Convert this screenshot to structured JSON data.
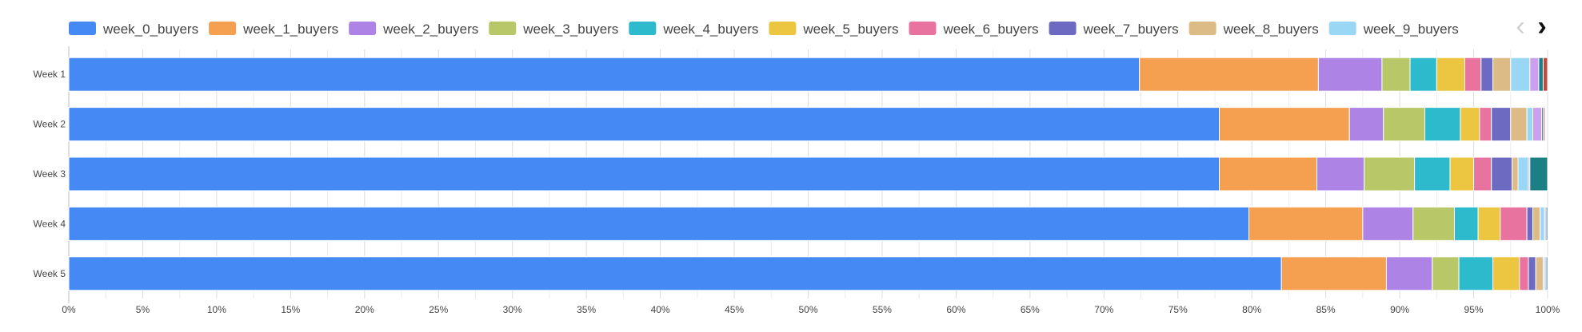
{
  "chart_data": {
    "type": "bar",
    "orientation": "horizontal",
    "stacked": "percent",
    "categories": [
      "Week 1",
      "Week 2",
      "Week 3",
      "Week 4",
      "Week 5"
    ],
    "xlim": [
      0,
      100
    ],
    "x_ticks": [
      "0%",
      "5%",
      "10%",
      "15%",
      "20%",
      "25%",
      "30%",
      "35%",
      "40%",
      "45%",
      "50%",
      "55%",
      "60%",
      "65%",
      "70%",
      "75%",
      "80%",
      "85%",
      "90%",
      "95%",
      "100%"
    ],
    "grid": true,
    "legend": "top",
    "series": [
      {
        "name": "week_0_buyers",
        "color": "#4589F5",
        "values": [
          72.4,
          77.8,
          77.8,
          79.8,
          82.0
        ]
      },
      {
        "name": "week_1_buyers",
        "color": "#F5A051",
        "values": [
          12.1,
          8.8,
          6.6,
          7.7,
          7.1
        ]
      },
      {
        "name": "week_2_buyers",
        "color": "#AD83E5",
        "values": [
          4.3,
          2.3,
          3.2,
          3.4,
          3.1
        ]
      },
      {
        "name": "week_3_buyers",
        "color": "#B8C869",
        "values": [
          1.9,
          2.8,
          3.4,
          2.8,
          1.8
        ]
      },
      {
        "name": "week_4_buyers",
        "color": "#2DBACC",
        "values": [
          1.8,
          2.4,
          2.4,
          1.6,
          2.3
        ]
      },
      {
        "name": "week_5_buyers",
        "color": "#ECC541",
        "values": [
          1.9,
          1.3,
          1.6,
          1.5,
          1.8
        ]
      },
      {
        "name": "week_6_buyers",
        "color": "#E8739F",
        "values": [
          1.1,
          0.8,
          1.2,
          1.8,
          0.6
        ]
      },
      {
        "name": "week_7_buyers",
        "color": "#6C6BC1",
        "values": [
          0.8,
          1.3,
          1.4,
          0.4,
          0.5
        ]
      },
      {
        "name": "week_8_buyers",
        "color": "#DDBB87",
        "values": [
          1.2,
          1.1,
          0.4,
          0.5,
          0.5
        ]
      },
      {
        "name": "week_9_buyers",
        "color": "#9AD7F4",
        "values": [
          1.3,
          0.4,
          0.7,
          0.3,
          0.1
        ]
      },
      {
        "name": "",
        "color": "#CC9FF1",
        "values": [
          0.6,
          0.6,
          0.1,
          0.1,
          0.1
        ]
      },
      {
        "name": "",
        "color": "#1B7F84",
        "values": [
          0.3,
          0.1,
          1.2,
          0.1,
          0.1
        ]
      },
      {
        "name": "",
        "color": "#C04A3F",
        "values": [
          0.3,
          0.1,
          0.0,
          0.0,
          0.0
        ]
      }
    ]
  },
  "legend_nav": {
    "prev_icon": "‹",
    "next_icon": "›"
  }
}
